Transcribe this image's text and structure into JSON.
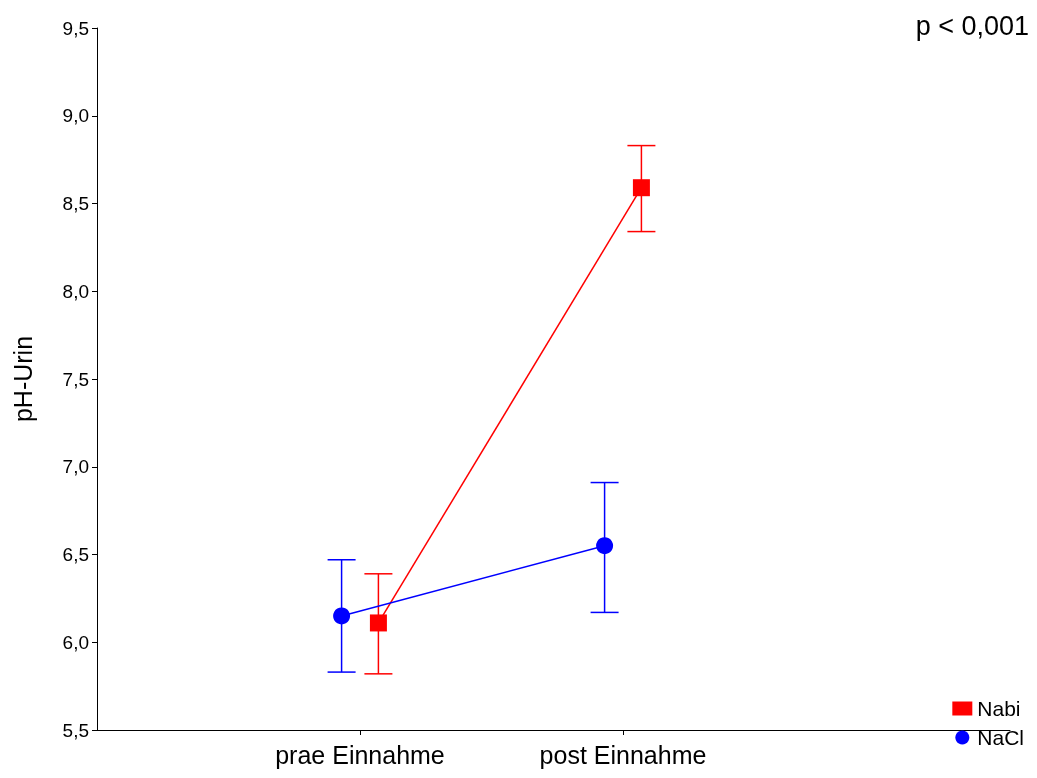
{
  "chart_data": {
    "type": "line",
    "ylabel": "pH-Urin",
    "categories": [
      "prae Einnahme",
      "post Einnahme"
    ],
    "series": [
      {
        "name": "Nabi",
        "color": "#ff0000",
        "marker": "square",
        "values": [
          6.11,
          8.59
        ],
        "errors": [
          [
            5.82,
            6.39
          ],
          [
            8.34,
            8.83
          ]
        ]
      },
      {
        "name": "NaCl",
        "color": "#0000ff",
        "marker": "circle",
        "values": [
          6.15,
          6.55
        ],
        "errors": [
          [
            5.83,
            6.47
          ],
          [
            6.17,
            6.91
          ]
        ]
      }
    ],
    "ylim": [
      5.5,
      9.5
    ],
    "yticks": [
      {
        "value": 5.5,
        "label": "5,5"
      },
      {
        "value": 6.0,
        "label": "6,0"
      },
      {
        "value": 6.5,
        "label": "6,5"
      },
      {
        "value": 7.0,
        "label": "7,0"
      },
      {
        "value": 7.5,
        "label": "7,5"
      },
      {
        "value": 8.0,
        "label": "8,0"
      },
      {
        "value": 8.5,
        "label": "8,5"
      },
      {
        "value": 9.0,
        "label": "9,0"
      },
      {
        "value": 9.5,
        "label": "9,5"
      }
    ],
    "annotations": [
      "p < 0,001"
    ],
    "grid": false,
    "legend": "bottom right"
  }
}
